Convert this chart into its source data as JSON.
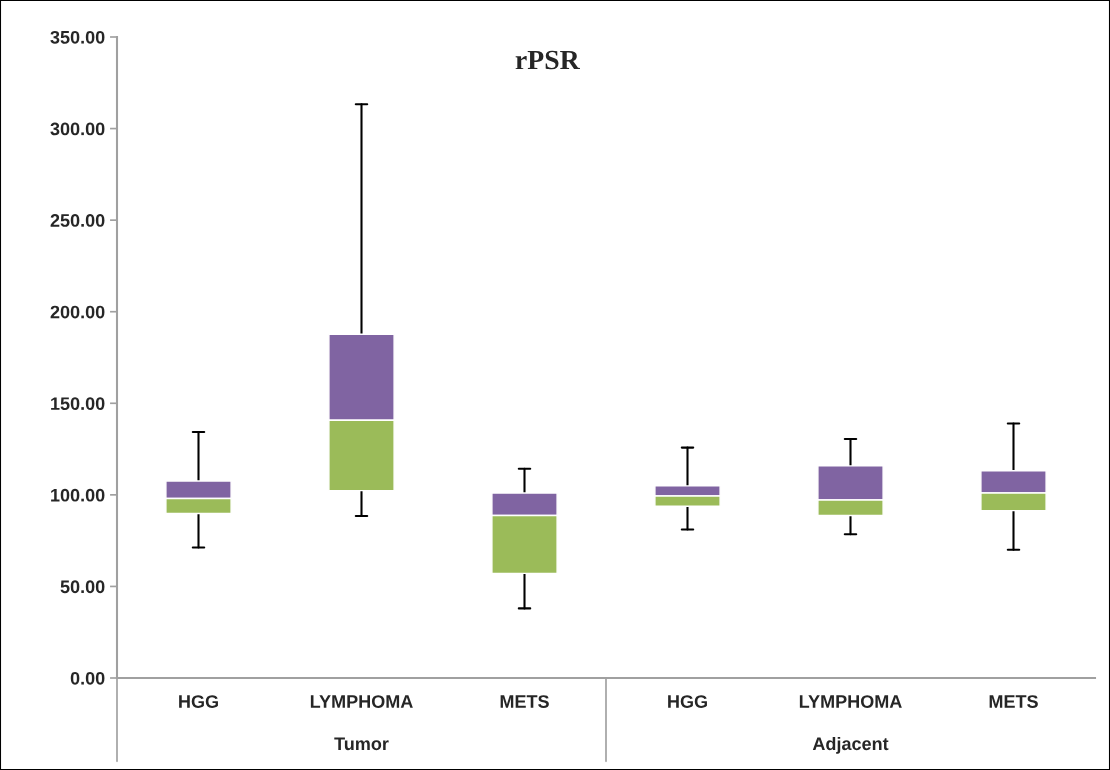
{
  "chart_data": {
    "type": "box",
    "title": "rPSR",
    "categories": [
      "HGG",
      "LYMPHOMA",
      "METS",
      "HGG",
      "LYMPHOMA",
      "METS"
    ],
    "colors": [
      "#9bbb59",
      "#9bbb59",
      "#9bbb59",
      "#9bbb59",
      "#9bbb59",
      "#9bbb59"
    ],
    "color": "#8064a2",
    "boxes": [
      {
        "low": 71.3,
        "q1": 89.8,
        "median": 98.0,
        "q3": 107.6,
        "high": 134.3
      },
      {
        "low": 88.5,
        "q1": 102.3,
        "median": 140.7,
        "q3": 187.7,
        "high": 313.3
      },
      {
        "low": 38.0,
        "q1": 57.1,
        "median": 88.7,
        "q3": 101.0,
        "high": 114.3
      },
      {
        "low": 81.1,
        "q1": 93.8,
        "median": 99.4,
        "q3": 104.9,
        "high": 125.8
      },
      {
        "low": 78.5,
        "q1": 88.7,
        "median": 97.2,
        "q3": 115.8,
        "high": 130.5
      },
      {
        "low": 70.0,
        "q1": 91.4,
        "median": 101.0,
        "q3": 113.2,
        "high": 139.0
      }
    ],
    "annotations": [
      "Tumor",
      "Adjacent"
    ],
    "ylim": [
      0,
      350
    ],
    "yticks": [
      {
        "value": 0,
        "label": "0.00"
      },
      {
        "value": 50,
        "label": "50.00"
      },
      {
        "value": 100,
        "label": "100.00"
      },
      {
        "value": 150,
        "label": "150.00"
      },
      {
        "value": 200,
        "label": "200.00"
      },
      {
        "value": 250,
        "label": "250.00"
      },
      {
        "value": 300,
        "label": "300.00"
      },
      {
        "value": 350,
        "label": "350.00"
      }
    ],
    "grid": false
  }
}
